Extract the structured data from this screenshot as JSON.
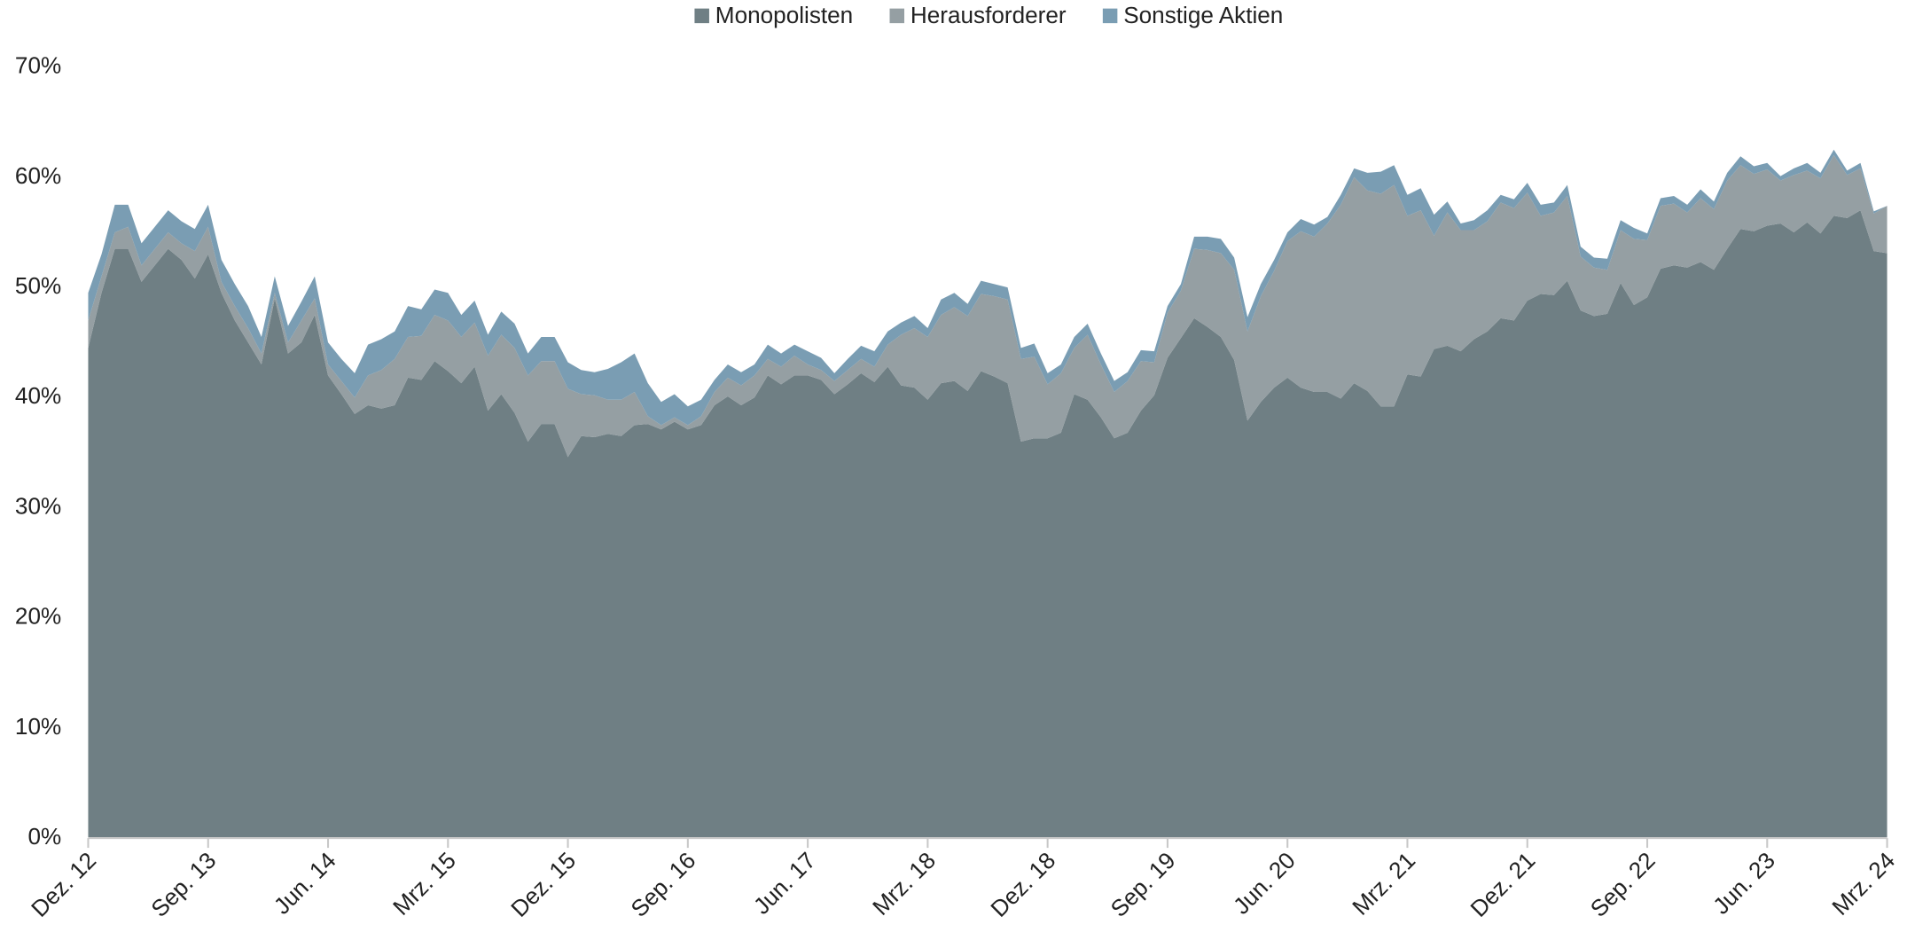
{
  "chart_data": {
    "type": "stacked-area",
    "categories": [
      "Dez. 12",
      null,
      null,
      null,
      null,
      null,
      null,
      null,
      null,
      "Sep. 13",
      null,
      null,
      null,
      null,
      null,
      null,
      null,
      null,
      "Jun. 14",
      null,
      null,
      null,
      null,
      null,
      null,
      null,
      null,
      "Mrz. 15",
      null,
      null,
      null,
      null,
      null,
      null,
      null,
      null,
      "Dez. 15",
      null,
      null,
      null,
      null,
      null,
      null,
      null,
      null,
      "Sep. 16",
      null,
      null,
      null,
      null,
      null,
      null,
      null,
      null,
      "Jun. 17",
      null,
      null,
      null,
      null,
      null,
      null,
      null,
      null,
      "Mrz. 18",
      null,
      null,
      null,
      null,
      null,
      null,
      null,
      null,
      "Dez. 18",
      null,
      null,
      null,
      null,
      null,
      null,
      null,
      null,
      "Sep. 19",
      null,
      null,
      null,
      null,
      null,
      null,
      null,
      null,
      "Jun. 20",
      null,
      null,
      null,
      null,
      null,
      null,
      null,
      null,
      "Mrz. 21",
      null,
      null,
      null,
      null,
      null,
      null,
      null,
      null,
      "Dez. 21",
      null,
      null,
      null,
      null,
      null,
      null,
      null,
      null,
      "Sep. 22",
      null,
      null,
      null,
      null,
      null,
      null,
      null,
      null,
      "Jun. 23",
      null,
      null,
      null,
      null,
      null,
      null,
      null,
      null,
      "Mrz. 24"
    ],
    "series": [
      {
        "name": "Monopolisten",
        "color": "#6f7f84",
        "values": [
          44.5,
          49.5,
          53.5,
          53.5,
          50.5,
          52,
          53.5,
          52.5,
          50.8,
          53,
          49.5,
          47,
          45,
          43,
          49,
          44,
          45,
          47.5,
          42,
          40.3,
          38.5,
          39.3,
          39,
          39.3,
          41.8,
          41.6,
          43.3,
          42.4,
          41.3,
          42.8,
          38.8,
          40.3,
          38.6,
          36,
          37.6,
          37.6,
          34.6,
          36.5,
          36.4,
          36.7,
          36.5,
          37.5,
          37.6,
          37.1,
          37.8,
          37.1,
          37.5,
          39.3,
          40.1,
          39.3,
          40,
          42,
          41.2,
          42,
          42,
          41.6,
          40.3,
          41.2,
          42.2,
          41.4,
          42.8,
          41.1,
          40.9,
          39.8,
          41.3,
          41.5,
          40.6,
          42.4,
          41.9,
          41.3,
          36,
          36.3,
          36.3,
          36.8,
          40.3,
          39.8,
          38.2,
          36.3,
          36.8,
          38.8,
          40.2,
          43.6,
          45.4,
          47.2,
          46.4,
          45.5,
          43.4,
          37.9,
          39.6,
          40.9,
          41.8,
          40.9,
          40.5,
          40.5,
          39.9,
          41.3,
          40.6,
          39.2,
          39.2,
          42.1,
          41.9,
          44.4,
          44.7,
          44.2,
          45.3,
          46,
          47.2,
          47,
          48.8,
          49.4,
          49.3,
          50.6,
          47.9,
          47.4,
          47.6,
          50.4,
          48.4,
          49.1,
          51.7,
          52,
          51.8,
          52.3,
          51.6,
          53.5,
          55.3,
          55.1,
          55.6,
          55.8,
          55,
          55.9,
          54.9,
          56.5,
          56.3,
          57,
          53.3,
          53.1
        ]
      },
      {
        "name": "Herausforderer",
        "color": "#959fa3",
        "values": [
          2.5,
          1.5,
          1.5,
          2.0,
          1.5,
          1.5,
          1.5,
          1.5,
          2.5,
          2.5,
          1.0,
          1.3,
          1.3,
          1.0,
          0.5,
          1.0,
          2.0,
          1.5,
          1.0,
          1.2,
          1.5,
          2.7,
          3.5,
          4.2,
          3.7,
          4.0,
          4.2,
          4.6,
          4.2,
          4.0,
          5.0,
          5.4,
          5.9,
          6.0,
          5.7,
          5.7,
          6.2,
          3.8,
          3.8,
          3.1,
          3.3,
          3.0,
          0.7,
          0.4,
          0.4,
          0.4,
          0.8,
          1.2,
          1.7,
          1.8,
          2.0,
          1.5,
          1.6,
          1.8,
          1.0,
          0.9,
          1.2,
          1.3,
          1.3,
          1.4,
          2.0,
          4.6,
          5.4,
          5.7,
          6.2,
          6.7,
          6.8,
          7.0,
          7.3,
          7.6,
          7.5,
          7.4,
          4.9,
          5.4,
          4.2,
          5.9,
          4.8,
          4.2,
          4.7,
          4.5,
          3.0,
          4.1,
          4.3,
          6.3,
          7.0,
          7.6,
          8.2,
          8.1,
          9.6,
          10.6,
          12.4,
          14.2,
          14.1,
          15.3,
          17.6,
          18.7,
          18.2,
          19.3,
          20.1,
          14.4,
          15.1,
          10.3,
          12.1,
          11.0,
          9.9,
          10.0,
          10.5,
          10.2,
          9.8,
          7.1,
          7.5,
          7.7,
          4.9,
          4.4,
          4.0,
          4.8,
          6.0,
          5.2,
          5.7,
          5.6,
          5.0,
          5.8,
          5.5,
          6.2,
          5.8,
          5.2,
          5.1,
          3.9,
          5.2,
          4.7,
          5.0,
          5.5,
          3.9,
          3.8,
          3.4,
          4.3
        ]
      },
      {
        "name": "Sonstige Aktien",
        "color": "#7a9db3",
        "values": [
          2.5,
          2.0,
          2.5,
          2.0,
          2.0,
          2.0,
          2.0,
          2.0,
          2.0,
          2.0,
          2.0,
          2.0,
          2.0,
          1.5,
          1.5,
          1.5,
          1.7,
          2.0,
          2.0,
          2.0,
          2.2,
          2.8,
          2.8,
          2.5,
          2.8,
          2.4,
          2.3,
          2.5,
          2.0,
          2.0,
          1.9,
          2.1,
          2.2,
          2.0,
          2.2,
          2.2,
          2.4,
          2.2,
          2.1,
          2.8,
          3.4,
          3.5,
          3.0,
          2.1,
          2.1,
          1.7,
          1.5,
          1.1,
          1.2,
          1.2,
          1.0,
          1.3,
          1.2,
          1.0,
          1.2,
          1.1,
          0.7,
          1.0,
          1.2,
          1.4,
          1.2,
          1.1,
          1.1,
          0.8,
          1.4,
          1.3,
          1.1,
          1.2,
          1.1,
          1.1,
          1.0,
          1.2,
          1.0,
          0.8,
          1.0,
          1.0,
          1.0,
          1.0,
          0.8,
          1.0,
          1.0,
          0.6,
          0.6,
          1.1,
          1.2,
          1.3,
          1.1,
          1.3,
          1.1,
          1.0,
          0.8,
          1.1,
          1.1,
          0.6,
          0.9,
          0.8,
          1.6,
          2.0,
          1.8,
          1.9,
          2.0,
          1.9,
          1.0,
          0.6,
          0.9,
          1.0,
          0.7,
          0.8,
          0.9,
          1.0,
          0.9,
          1.0,
          0.9,
          0.9,
          1.0,
          0.9,
          1.0,
          0.6,
          0.7,
          0.7,
          0.7,
          0.8,
          0.7,
          0.7,
          0.8,
          0.7,
          0.6,
          0.4,
          0.6,
          0.7,
          0.5,
          0.5,
          0.4,
          0.5,
          0.2,
          0.0
        ]
      }
    ],
    "ylim": [
      0,
      70
    ],
    "yticks": [
      {
        "value": 0,
        "label": "0%"
      },
      {
        "value": 10,
        "label": "10%"
      },
      {
        "value": 20,
        "label": "20%"
      },
      {
        "value": 30,
        "label": "30%"
      },
      {
        "value": 40,
        "label": "40%"
      },
      {
        "value": 50,
        "label": "50%"
      },
      {
        "value": 60,
        "label": "60%"
      },
      {
        "value": 70,
        "label": "70%"
      }
    ],
    "grid": false,
    "legend": "top"
  }
}
